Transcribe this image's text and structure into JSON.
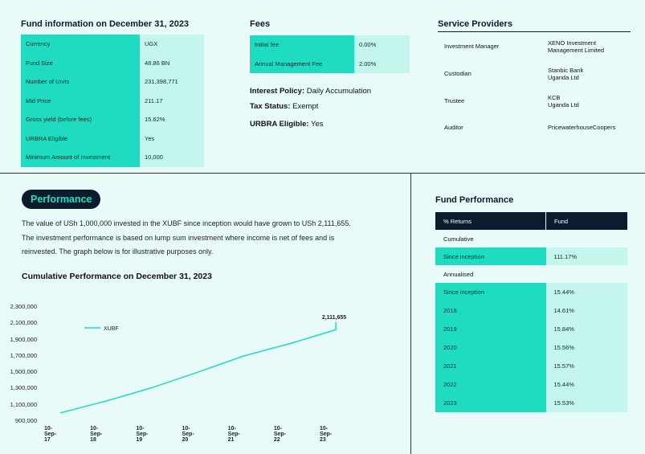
{
  "fund_info": {
    "title": "Fund information on December 31, 2023",
    "rows": [
      {
        "label": "Currency",
        "value": "UGX"
      },
      {
        "label": "Fund Size",
        "value": "48.86 BN"
      },
      {
        "label": "Number of Units",
        "value": "231,398,771"
      },
      {
        "label": "Mid Price",
        "value": "211.17"
      },
      {
        "label": "Gross yield (before fees)",
        "value": "15.62%"
      },
      {
        "label": "URBRA Eligible",
        "value": "Yes"
      },
      {
        "label": "Minimum Amount of Investment",
        "value": "10,000"
      }
    ]
  },
  "fees": {
    "title": "Fees",
    "rows": [
      {
        "label": "Initial fee",
        "value": "0.00%"
      },
      {
        "label": "Annual Management Fee",
        "value": "2.00%"
      }
    ],
    "interest_policy_label": "Interest Policy:",
    "interest_policy_value": "Daily Accumulation",
    "tax_status_label": "Tax Status:",
    "tax_status_value": "Exempt",
    "urbra_label": "URBRA Eligible:",
    "urbra_value": "Yes"
  },
  "service_providers": {
    "title": "Service Providers",
    "rows": [
      {
        "label": "Investment Manager",
        "value_line1": "XENO Investment",
        "value_line2": "Management Limited"
      },
      {
        "label": "Custodian",
        "value_line1": "Stanbic Bank",
        "value_line2": "Uganda Ltd"
      },
      {
        "label": "Trustee",
        "value_line1": "KCB",
        "value_line2": "Uganda Ltd"
      },
      {
        "label": "Auditor",
        "value_line1": "PricewaterhouseCoopers",
        "value_line2": ""
      }
    ]
  },
  "performance": {
    "pill": "Performance",
    "para_line1": "The value of USh 1,000,000 invested in the XUBF since inception would have grown to USh 2,111,655.",
    "para_line2": "The investment performance is based on lump sum investment where income is net of fees and is",
    "para_line3": "reinvested. The graph below is for illustrative purposes only.",
    "chart_title": "Cumulative Performance on December 31, 2023"
  },
  "chart_data": {
    "type": "line",
    "title": "Cumulative Performance on December 31, 2023",
    "x_ticks": [
      "10-Sep-17",
      "10-Sep-18",
      "10-Sep-19",
      "10-Sep-20",
      "10-Sep-21",
      "10-Sep-22",
      "10-Sep-23"
    ],
    "y_ticks": [
      "2,300,000",
      "2,100,000",
      "1,900,000",
      "1,700,000",
      "1,500,000",
      "1,300,000",
      "1,100,000",
      "900,000"
    ],
    "ylim": [
      900000,
      2300000
    ],
    "series": [
      {
        "name": "XUBF",
        "color": "#1fdcc0",
        "x": [
          "2017-09-10",
          "2018-09-10",
          "2019-09-10",
          "2020-09-10",
          "2021-09-10",
          "2022-09-10",
          "2023-09-10",
          "2023-12-31"
        ],
        "values": [
          1000000,
          1145000,
          1310000,
          1500000,
          1700000,
          1850000,
          2020000,
          2111655
        ]
      }
    ],
    "end_label": "2,111,655",
    "legend": "top-left"
  },
  "fund_performance": {
    "title": "Fund Performance",
    "header": {
      "col1": "% Returns",
      "col2": "Fund"
    },
    "cumulative_label": "Cumulative",
    "cumulative_rows": [
      {
        "label": "Since inception",
        "value": "111.17%"
      }
    ],
    "annualised_label": "Annualised",
    "annualised_rows": [
      {
        "label": "Since inception",
        "value": "15.44%"
      },
      {
        "label": "2018",
        "value": "14.61%"
      },
      {
        "label": "2019",
        "value": "15.84%"
      },
      {
        "label": "2020",
        "value": "15.56%"
      },
      {
        "label": "2021",
        "value": "15.57%"
      },
      {
        "label": "2022",
        "value": "15.44%"
      },
      {
        "label": "2023",
        "value": "15.53%"
      }
    ]
  },
  "colors": {
    "teal": "#1fdcc0",
    "light_teal": "#c5f6ee",
    "navy": "#0d1b2e",
    "background": "#e9fbf8"
  }
}
